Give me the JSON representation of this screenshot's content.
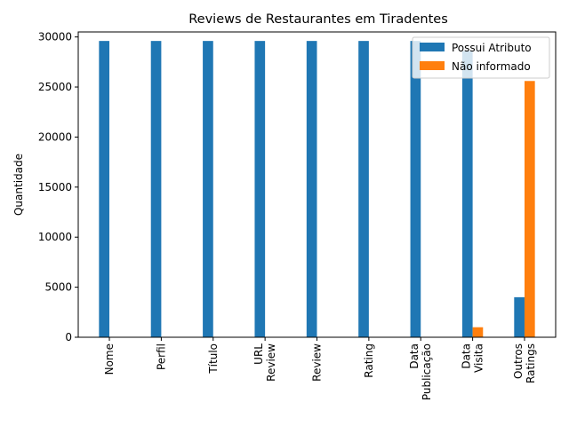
{
  "chart_data": {
    "type": "bar",
    "title": "Reviews de Restaurantes em Tiradentes",
    "xlabel": "",
    "ylabel": "Quantidade",
    "ylim": [
      0,
      30500
    ],
    "yticks": [
      0,
      5000,
      10000,
      15000,
      20000,
      25000,
      30000
    ],
    "categories": [
      [
        "Nome"
      ],
      [
        "Perfil"
      ],
      [
        "Título"
      ],
      [
        "URL",
        "Review"
      ],
      [
        "Review"
      ],
      [
        "Rating"
      ],
      [
        "Data",
        "Publicação"
      ],
      [
        "Data",
        "Visita"
      ],
      [
        "Outros",
        "Ratings"
      ]
    ],
    "series": [
      {
        "name": "Possui Atributo",
        "color": "#1f77b4",
        "values": [
          29600,
          29600,
          29600,
          29600,
          29600,
          29600,
          29600,
          28600,
          4000
        ]
      },
      {
        "name": "Não informado",
        "color": "#ff7f0e",
        "values": [
          0,
          0,
          0,
          0,
          0,
          0,
          0,
          1000,
          25600
        ]
      }
    ],
    "legend": "top-right",
    "grid": false
  }
}
